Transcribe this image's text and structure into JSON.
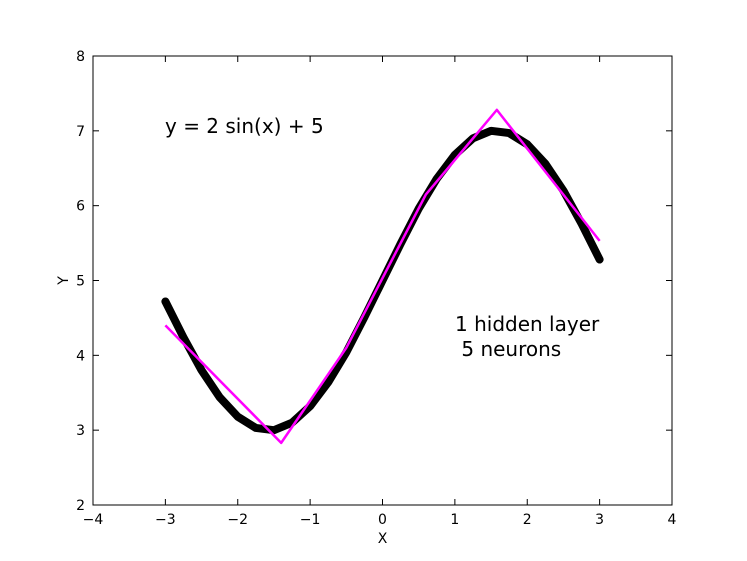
{
  "chart_data": {
    "type": "line",
    "xlabel": "X",
    "ylabel": "Y",
    "xlim": [
      -4,
      4
    ],
    "ylim": [
      2,
      8
    ],
    "xticks": [
      -4,
      -3,
      -2,
      -1,
      0,
      1,
      2,
      3,
      4
    ],
    "xtick_labels": [
      "−4",
      "−3",
      "−2",
      "−1",
      "0",
      "1",
      "2",
      "3",
      "4"
    ],
    "yticks": [
      2,
      3,
      4,
      5,
      6,
      7,
      8
    ],
    "ytick_labels": [
      "2",
      "3",
      "4",
      "5",
      "6",
      "7",
      "8"
    ],
    "grid": false,
    "annotations": {
      "function": "y = 2 sin(x) + 5",
      "network_line1": "1 hidden layer",
      "network_line2": " 5 neurons"
    },
    "series": [
      {
        "color": "#000000",
        "x": [
          -3.0,
          -2.75,
          -2.5,
          -2.25,
          -2.0,
          -1.75,
          -1.5,
          -1.25,
          -1.0,
          -0.75,
          -0.5,
          -0.25,
          0.0,
          0.25,
          0.5,
          0.75,
          1.0,
          1.25,
          1.5,
          1.75,
          2.0,
          2.25,
          2.5,
          2.75,
          3.0
        ],
        "y": [
          4.72,
          4.24,
          3.8,
          3.44,
          3.18,
          3.03,
          3.0,
          3.1,
          3.32,
          3.64,
          4.04,
          4.51,
          5.0,
          5.49,
          5.96,
          6.36,
          6.68,
          6.9,
          7.0,
          6.97,
          6.82,
          6.56,
          6.2,
          5.76,
          5.28
        ]
      },
      {
        "color": "#ff00ff",
        "x": [
          -3.0,
          -1.4,
          -0.5,
          0.6,
          1.58,
          3.0
        ],
        "y": [
          4.4,
          2.83,
          4.1,
          6.15,
          7.28,
          5.53
        ]
      }
    ]
  }
}
